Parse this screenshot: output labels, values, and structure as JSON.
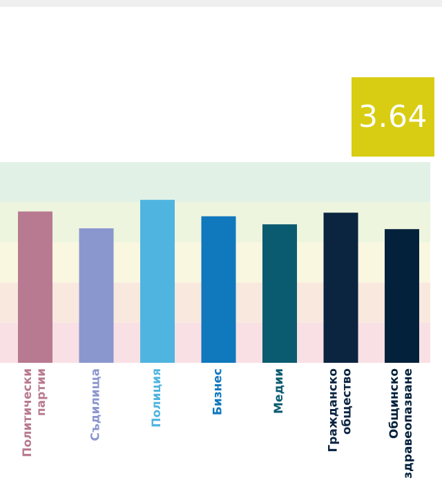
{
  "score": {
    "value": "3.64",
    "color": "#d8cd12"
  },
  "chart_data": {
    "type": "bar",
    "title": "",
    "xlabel": "",
    "ylabel": "",
    "ylim": [
      0,
      5
    ],
    "grid": false,
    "bands": [
      {
        "from": 0,
        "to": 1,
        "color": "#f9e0e4"
      },
      {
        "from": 1,
        "to": 2,
        "color": "#f8e8de"
      },
      {
        "from": 2,
        "to": 3,
        "color": "#faf7e1"
      },
      {
        "from": 3,
        "to": 4,
        "color": "#eef5df"
      },
      {
        "from": 4,
        "to": 5,
        "color": "#e2f1e6"
      }
    ],
    "categories": [
      [
        "Политически",
        "партии"
      ],
      [
        "Съдилища"
      ],
      [
        "Полиция"
      ],
      [
        "Бизнес"
      ],
      [
        "Медии"
      ],
      [
        "Гражданско",
        "общество"
      ],
      [
        "Общинско",
        "здравеопазване"
      ]
    ],
    "values": [
      3.77,
      3.35,
      4.06,
      3.65,
      3.45,
      3.74,
      3.33
    ],
    "colors": [
      "#b87a90",
      "#8a97cf",
      "#4fb4e0",
      "#1078bd",
      "#0b5b70",
      "#0b2440",
      "#03213b"
    ]
  }
}
